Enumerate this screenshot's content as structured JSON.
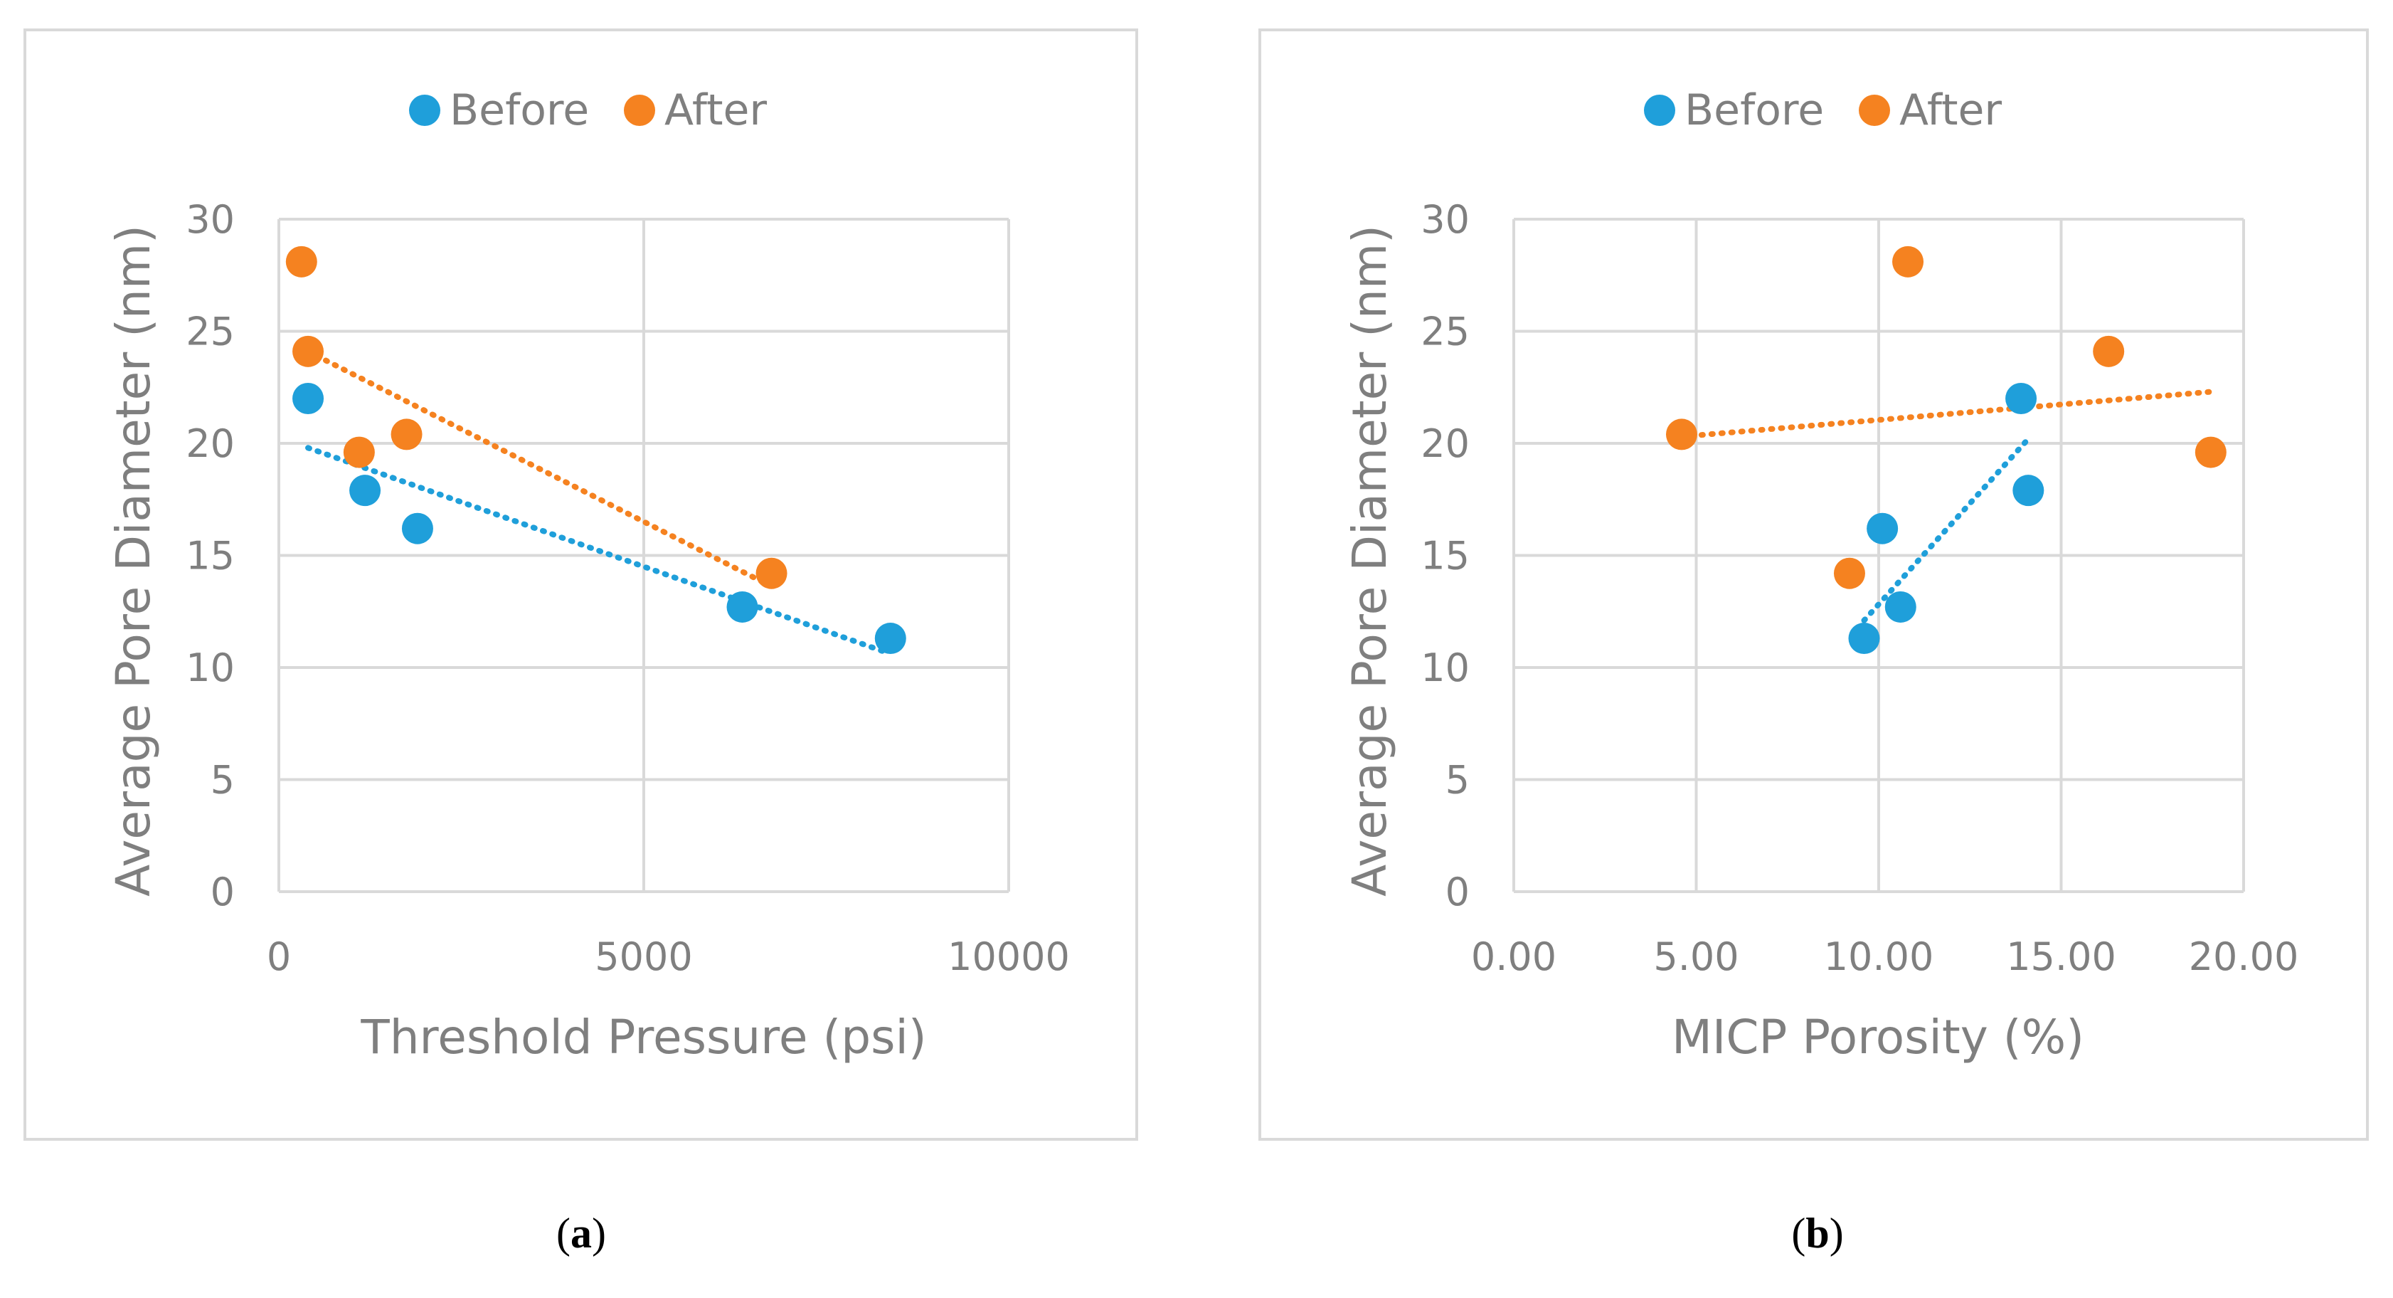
{
  "chart_data": [
    {
      "type": "scatter",
      "panel_label": "a",
      "xlabel": "Threshold Pressure (psi)",
      "ylabel": "Average Pore Diameter (nm)",
      "xlim": [
        0,
        10000
      ],
      "ylim": [
        0,
        30
      ],
      "xticks": [
        0,
        5000,
        10000
      ],
      "xtick_labels": [
        "0",
        "5000",
        "10000"
      ],
      "yticks": [
        0,
        5,
        10,
        15,
        20,
        25,
        30
      ],
      "ytick_labels": [
        "0",
        "5",
        "10",
        "15",
        "20",
        "25",
        "30"
      ],
      "grid": true,
      "legend_position": "top-center",
      "series": [
        {
          "name": "Before",
          "color": "#1f9fda",
          "x": [
            400,
            1180,
            1900,
            6350,
            8380
          ],
          "y": [
            22.0,
            17.9,
            16.2,
            12.7,
            11.3
          ],
          "trendline": {
            "x": [
              400,
              8300
            ],
            "y": [
              19.8,
              10.7
            ]
          }
        },
        {
          "name": "After",
          "color": "#f58220",
          "x": [
            310,
            400,
            1100,
            1750,
            6750
          ],
          "y": [
            28.1,
            24.1,
            19.6,
            20.4,
            14.2
          ],
          "trendline": {
            "x": [
              400,
              6700
            ],
            "y": [
              24.1,
              13.7
            ]
          }
        }
      ]
    },
    {
      "type": "scatter",
      "panel_label": "b",
      "xlabel": "MICP Porosity (%)",
      "ylabel": "Average Pore Diameter (nm)",
      "xlim": [
        0,
        20
      ],
      "ylim": [
        0,
        30
      ],
      "xticks": [
        0,
        5,
        10,
        15,
        20
      ],
      "xtick_labels": [
        "0.00",
        "5.00",
        "10.00",
        "15.00",
        "20.00"
      ],
      "yticks": [
        0,
        5,
        10,
        15,
        20,
        25,
        30
      ],
      "ytick_labels": [
        "0",
        "5",
        "10",
        "15",
        "20",
        "25",
        "30"
      ],
      "grid": true,
      "legend_position": "top-center",
      "series": [
        {
          "name": "Before",
          "color": "#1f9fda",
          "x": [
            9.6,
            10.1,
            10.6,
            13.9,
            14.1
          ],
          "y": [
            11.3,
            16.2,
            12.7,
            22.0,
            17.9
          ],
          "trendline": {
            "x": [
              9.6,
              14.1
            ],
            "y": [
              12.1,
              20.2
            ]
          }
        },
        {
          "name": "After",
          "color": "#f58220",
          "x": [
            4.6,
            9.2,
            10.8,
            16.3,
            19.1
          ],
          "y": [
            20.4,
            14.2,
            28.1,
            24.1,
            19.6
          ],
          "trendline": {
            "x": [
              4.6,
              19.1
            ],
            "y": [
              20.3,
              22.3
            ]
          }
        }
      ]
    }
  ]
}
